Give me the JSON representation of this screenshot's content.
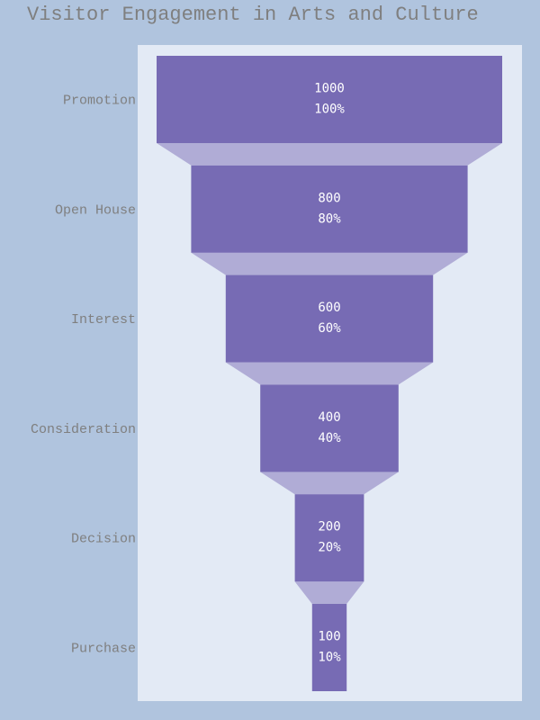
{
  "colors": {
    "page_background": "#b0c4de",
    "plot_background": "#e3eaf5",
    "bar_fill": "#776bb4",
    "connector_fill": "#b0acd6",
    "category_text": "#7f7f7f",
    "value_text": "#ffffff"
  },
  "chart_data": {
    "type": "funnel",
    "title": "Visitor Engagement in Arts and Culture",
    "stages": [
      "Promotion",
      "Open House",
      "Interest",
      "Consideration",
      "Decision",
      "Purchase"
    ],
    "values": [
      1000,
      800,
      600,
      400,
      200,
      100
    ],
    "percent_labels": [
      "100%",
      "80%",
      "60%",
      "40%",
      "20%",
      "10%"
    ],
    "value_max": 1000
  }
}
